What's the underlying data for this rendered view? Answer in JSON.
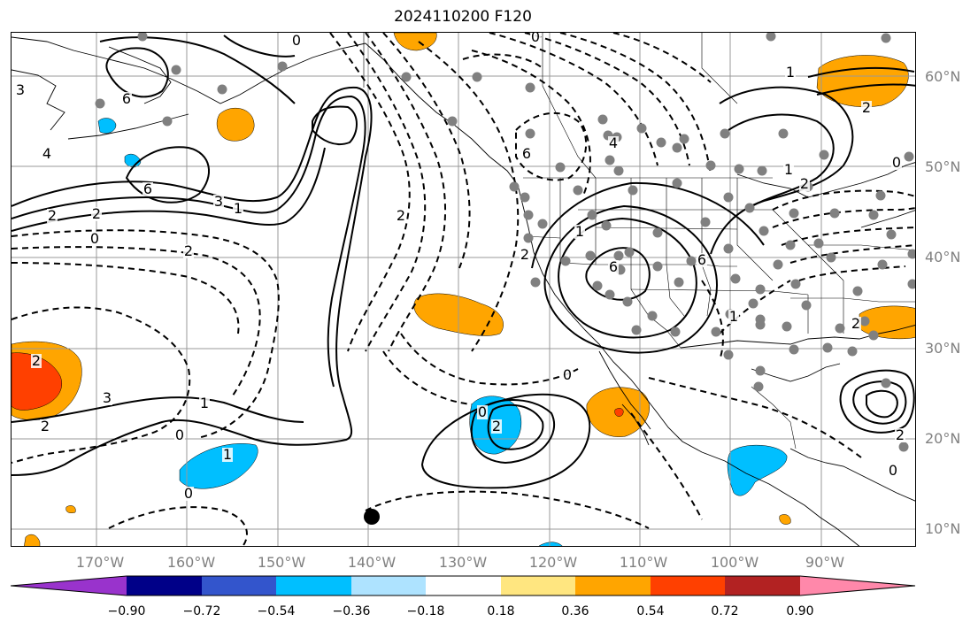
{
  "title": "2024110200 F120",
  "lat_labels": [
    "60°N",
    "50°N",
    "40°N",
    "30°N",
    "20°N",
    "10°N"
  ],
  "lon_labels": [
    "170°W",
    "160°W",
    "150°W",
    "140°W",
    "130°W",
    "120°W",
    "110°W",
    "100°W",
    "90°W"
  ],
  "colorbar": {
    "labels": [
      "−0.90",
      "−0.72",
      "−0.54",
      "−0.36",
      "−0.18",
      "0.18",
      "0.36",
      "0.54",
      "0.72",
      "0.90"
    ],
    "colors": [
      "#9933cc",
      "#000088",
      "#3355cc",
      "#00bfff",
      "#aee3ff",
      "#ffffff",
      "#ffe680",
      "#ffa500",
      "#ff4000",
      "#b22222",
      "#ff88aa"
    ]
  },
  "contour_labels": [
    "3",
    "6",
    "4",
    "6",
    "3",
    "2",
    "2",
    "0",
    "2",
    "1",
    "2",
    "3",
    "2",
    "1",
    "0",
    "1",
    "0",
    "0",
    "0",
    "2",
    "6",
    "4",
    "6",
    "2",
    "1",
    "6",
    "1",
    "2",
    "1",
    "0",
    "2",
    "1",
    "2",
    "0",
    "0",
    "2",
    "2",
    "0"
  ],
  "colors": {
    "shade_orange": "#ffa500",
    "shade_red": "#ff4000",
    "shade_blue": "#00bfff",
    "grid": "#999999",
    "station": "#808080",
    "marker": "#000000"
  },
  "marker_icon": "black-dot-marker"
}
